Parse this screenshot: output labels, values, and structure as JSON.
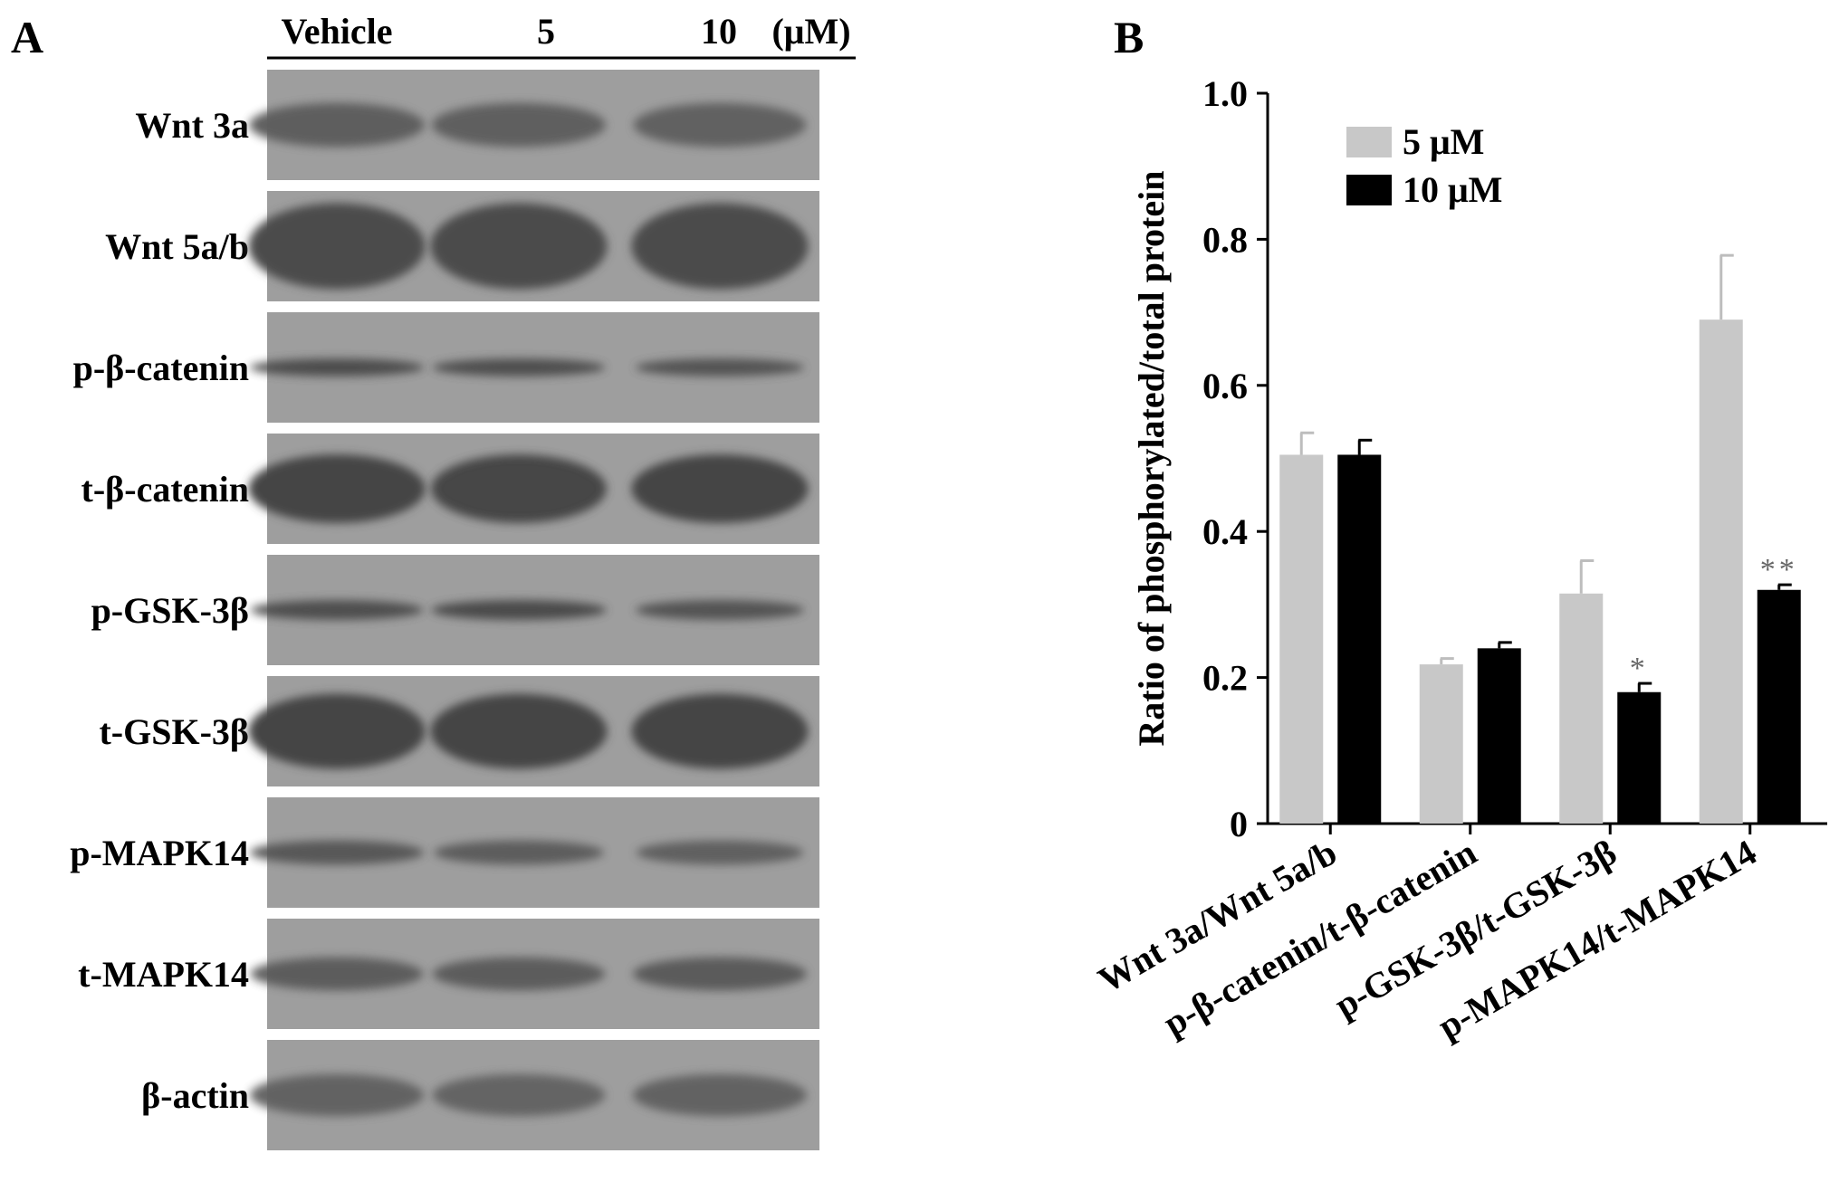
{
  "panel_a": {
    "letter": "A",
    "header": {
      "vehicle": "Vehicle",
      "dose_5": "5",
      "dose_10": "10",
      "unit": "(μM)"
    },
    "blots": [
      {
        "label": "Wnt 3a",
        "tone": "#5d5d5d",
        "band_height": 0.4,
        "intensity": [
          0.95,
          0.9,
          0.85
        ]
      },
      {
        "label": "Wnt 5a/b",
        "tone": "#4c4c4c",
        "band_height": 0.78,
        "intensity": [
          1.0,
          1.0,
          1.0
        ]
      },
      {
        "label": "p-β-catenin",
        "tone": "#484848",
        "band_height": 0.16,
        "intensity": [
          0.9,
          0.85,
          0.7
        ]
      },
      {
        "label": "t-β-catenin",
        "tone": "#444444",
        "band_height": 0.62,
        "intensity": [
          1.0,
          0.95,
          1.0
        ]
      },
      {
        "label": "p-GSK-3β",
        "tone": "#4a4a4a",
        "band_height": 0.18,
        "intensity": [
          0.85,
          0.95,
          0.7
        ]
      },
      {
        "label": "t-GSK-3β",
        "tone": "#454545",
        "band_height": 0.68,
        "intensity": [
          1.0,
          1.0,
          1.0
        ]
      },
      {
        "label": "p-MAPK14",
        "tone": "#555555",
        "band_height": 0.22,
        "intensity": [
          0.9,
          0.75,
          0.65
        ]
      },
      {
        "label": "t-MAPK14",
        "tone": "#585858",
        "band_height": 0.3,
        "intensity": [
          0.85,
          0.85,
          0.9
        ]
      },
      {
        "label": "β-actin",
        "tone": "#606060",
        "band_height": 0.38,
        "intensity": [
          0.9,
          0.85,
          0.9
        ]
      }
    ]
  },
  "chart_data": {
    "panel_letter": "B",
    "type": "bar",
    "title": "",
    "xlabel": "",
    "ylabel": "Ratio of phosphorylated/total protein",
    "ylim": [
      0,
      1.0
    ],
    "yticks": [
      "0",
      "0.2",
      "0.4",
      "0.6",
      "0.8",
      "1.0"
    ],
    "ytick_values": [
      0,
      0.2,
      0.4,
      0.6,
      0.8,
      1.0
    ],
    "categories": [
      "Wnt 3a/Wnt 5a/b",
      "p-β-catenin/t-β-catenin",
      "p-GSK-3β/t-GSK-3β",
      "p-MAPK14/t-MAPK14"
    ],
    "series": [
      {
        "name": "5 μM",
        "color": "#c8c8c8",
        "values": [
          0.505,
          0.218,
          0.315,
          0.69
        ],
        "errors": [
          0.03,
          0.008,
          0.045,
          0.088
        ],
        "annotations": [
          "",
          "",
          "",
          ""
        ]
      },
      {
        "name": "10 μM",
        "color": "#000000",
        "values": [
          0.505,
          0.24,
          0.18,
          0.32
        ],
        "errors": [
          0.02,
          0.008,
          0.012,
          0.007
        ],
        "annotations": [
          "",
          "",
          "*",
          "**"
        ]
      }
    ],
    "legend_position": "top-left",
    "grid": false
  }
}
